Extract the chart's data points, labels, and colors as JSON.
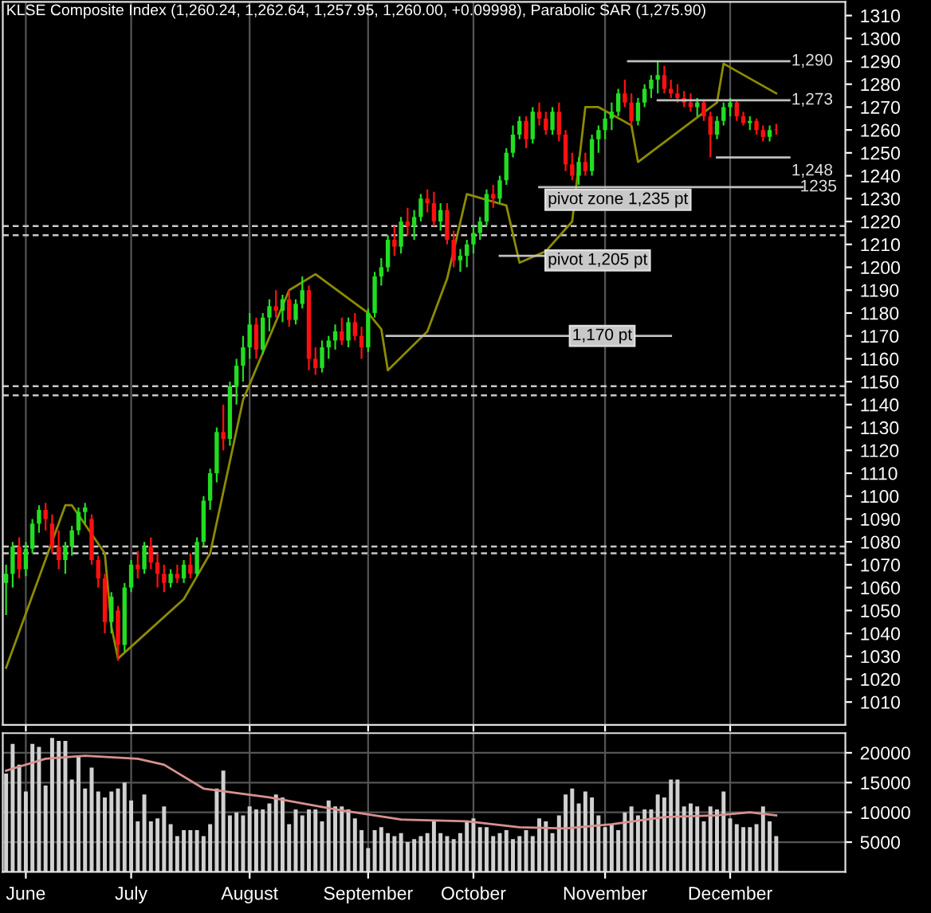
{
  "chart_data": [
    {
      "type": "candlestick",
      "title": "KLSE Composite Index (1,260.24, 1,262.64, 1,257.95, 1,260.00, +0.09998), Parabolic SAR (1,275.90)",
      "categories": [
        null,
        null,
        null,
        null,
        null,
        null,
        null,
        null,
        null,
        null,
        null,
        null,
        null,
        null,
        null,
        null,
        null,
        null,
        null,
        null,
        null,
        null,
        null,
        null,
        null,
        null,
        null,
        null,
        null,
        null,
        null,
        null,
        null,
        null,
        null,
        null,
        null,
        null,
        null,
        null,
        null,
        null,
        null,
        null,
        null,
        null,
        null,
        null,
        null,
        null,
        null,
        null,
        null,
        null,
        null,
        null,
        null,
        null,
        null,
        null,
        null,
        null,
        null,
        null,
        null,
        null,
        null,
        null,
        null,
        null,
        null,
        null,
        null,
        null,
        null,
        null,
        null,
        null,
        null,
        null,
        null,
        null,
        null,
        null,
        null,
        null,
        null,
        null,
        null,
        null,
        null,
        null,
        null,
        null,
        null,
        null,
        null,
        null,
        null,
        null,
        null,
        null,
        null,
        null,
        null,
        null,
        null,
        null,
        null,
        null,
        null,
        null,
        null,
        null,
        null,
        null,
        null,
        null,
        null,
        null,
        null,
        null,
        null,
        null,
        null,
        null,
        null,
        null
      ],
      "ohlc": [
        [
          1062,
          1070,
          1048,
          1066
        ],
        [
          1066,
          1080,
          1060,
          1078
        ],
        [
          1078,
          1082,
          1064,
          1068
        ],
        [
          1068,
          1080,
          1065,
          1077
        ],
        [
          1077,
          1090,
          1075,
          1088
        ],
        [
          1088,
          1096,
          1084,
          1094
        ],
        [
          1094,
          1097,
          1085,
          1090
        ],
        [
          1088,
          1092,
          1075,
          1078
        ],
        [
          1078,
          1085,
          1068,
          1072
        ],
        [
          1072,
          1080,
          1066,
          1078
        ],
        [
          1078,
          1087,
          1074,
          1085
        ],
        [
          1085,
          1095,
          1083,
          1093
        ],
        [
          1093,
          1097,
          1088,
          1095
        ],
        [
          1090,
          1092,
          1070,
          1072
        ],
        [
          1072,
          1074,
          1060,
          1064
        ],
        [
          1064,
          1066,
          1040,
          1045
        ],
        [
          1045,
          1058,
          1040,
          1056
        ],
        [
          1050,
          1052,
          1028,
          1035
        ],
        [
          1035,
          1062,
          1032,
          1060
        ],
        [
          1060,
          1072,
          1058,
          1070
        ],
        [
          1070,
          1076,
          1064,
          1068
        ],
        [
          1068,
          1080,
          1066,
          1078
        ],
        [
          1078,
          1082,
          1068,
          1071
        ],
        [
          1071,
          1075,
          1060,
          1066
        ],
        [
          1066,
          1070,
          1058,
          1062
        ],
        [
          1062,
          1068,
          1060,
          1066
        ],
        [
          1066,
          1070,
          1062,
          1064
        ],
        [
          1064,
          1072,
          1062,
          1070
        ],
        [
          1070,
          1075,
          1064,
          1066
        ],
        [
          1066,
          1082,
          1065,
          1080
        ],
        [
          1080,
          1100,
          1078,
          1098
        ],
        [
          1098,
          1112,
          1094,
          1110
        ],
        [
          1110,
          1130,
          1106,
          1128
        ],
        [
          1128,
          1140,
          1120,
          1125
        ],
        [
          1125,
          1150,
          1122,
          1148
        ],
        [
          1148,
          1160,
          1140,
          1157
        ],
        [
          1157,
          1170,
          1150,
          1165
        ],
        [
          1165,
          1180,
          1160,
          1175
        ],
        [
          1175,
          1178,
          1160,
          1164
        ],
        [
          1164,
          1180,
          1162,
          1178
        ],
        [
          1178,
          1186,
          1172,
          1183
        ],
        [
          1183,
          1190,
          1178,
          1181
        ],
        [
          1181,
          1188,
          1176,
          1186
        ],
        [
          1186,
          1190,
          1174,
          1177
        ],
        [
          1177,
          1186,
          1175,
          1184
        ],
        [
          1184,
          1196,
          1182,
          1190
        ],
        [
          1190,
          1192,
          1155,
          1160
        ],
        [
          1160,
          1165,
          1153,
          1156
        ],
        [
          1156,
          1168,
          1154,
          1165
        ],
        [
          1165,
          1170,
          1160,
          1168
        ],
        [
          1168,
          1175,
          1164,
          1172
        ],
        [
          1172,
          1178,
          1166,
          1168
        ],
        [
          1168,
          1178,
          1165,
          1176
        ],
        [
          1176,
          1180,
          1168,
          1170
        ],
        [
          1170,
          1174,
          1160,
          1165
        ],
        [
          1165,
          1182,
          1163,
          1180
        ],
        [
          1180,
          1198,
          1178,
          1196
        ],
        [
          1196,
          1204,
          1192,
          1200
        ],
        [
          1200,
          1214,
          1198,
          1212
        ],
        [
          1212,
          1218,
          1205,
          1209
        ],
        [
          1209,
          1222,
          1206,
          1220
        ],
        [
          1220,
          1226,
          1214,
          1218
        ],
        [
          1218,
          1225,
          1212,
          1222
        ],
        [
          1222,
          1232,
          1220,
          1230
        ],
        [
          1230,
          1234,
          1224,
          1228
        ],
        [
          1228,
          1233,
          1218,
          1220
        ],
        [
          1220,
          1228,
          1216,
          1225
        ],
        [
          1225,
          1228,
          1210,
          1212
        ],
        [
          1212,
          1216,
          1200,
          1203
        ],
        [
          1203,
          1208,
          1198,
          1205
        ],
        [
          1205,
          1212,
          1200,
          1210
        ],
        [
          1210,
          1218,
          1206,
          1215
        ],
        [
          1215,
          1222,
          1212,
          1220
        ],
        [
          1220,
          1234,
          1218,
          1232
        ],
        [
          1232,
          1236,
          1226,
          1230
        ],
        [
          1230,
          1240,
          1228,
          1238
        ],
        [
          1238,
          1252,
          1236,
          1250
        ],
        [
          1250,
          1262,
          1248,
          1258
        ],
        [
          1258,
          1266,
          1256,
          1264
        ],
        [
          1264,
          1266,
          1252,
          1256
        ],
        [
          1256,
          1270,
          1254,
          1268
        ],
        [
          1268,
          1272,
          1262,
          1265
        ],
        [
          1265,
          1268,
          1258,
          1260
        ],
        [
          1260,
          1270,
          1258,
          1268
        ],
        [
          1268,
          1272,
          1255,
          1258
        ],
        [
          1258,
          1260,
          1242,
          1245
        ],
        [
          1245,
          1250,
          1238,
          1240
        ],
        [
          1240,
          1248,
          1236,
          1246
        ],
        [
          1246,
          1250,
          1240,
          1242
        ],
        [
          1242,
          1258,
          1240,
          1256
        ],
        [
          1256,
          1262,
          1250,
          1260
        ],
        [
          1260,
          1268,
          1256,
          1265
        ],
        [
          1265,
          1272,
          1260,
          1268
        ],
        [
          1268,
          1278,
          1266,
          1276
        ],
        [
          1276,
          1282,
          1270,
          1272
        ],
        [
          1272,
          1276,
          1262,
          1264
        ],
        [
          1264,
          1274,
          1262,
          1272
        ],
        [
          1272,
          1280,
          1270,
          1278
        ],
        [
          1278,
          1284,
          1274,
          1282
        ],
        [
          1282,
          1290,
          1276,
          1284
        ],
        [
          1284,
          1288,
          1276,
          1278
        ],
        [
          1278,
          1282,
          1274,
          1276
        ],
        [
          1276,
          1280,
          1272,
          1274
        ],
        [
          1274,
          1277,
          1270,
          1272
        ],
        [
          1272,
          1276,
          1268,
          1270
        ],
        [
          1270,
          1274,
          1266,
          1272
        ],
        [
          1272,
          1273,
          1264,
          1266
        ],
        [
          1266,
          1268,
          1248,
          1258
        ],
        [
          1258,
          1266,
          1256,
          1264
        ],
        [
          1264,
          1272,
          1262,
          1270
        ],
        [
          1270,
          1274,
          1266,
          1272
        ],
        [
          1272,
          1273,
          1264,
          1266
        ],
        [
          1266,
          1268,
          1262,
          1263
        ],
        [
          1263,
          1266,
          1260,
          1264
        ],
        [
          1264,
          1265,
          1258,
          1260
        ],
        [
          1260,
          1262,
          1255,
          1257
        ],
        [
          1257,
          1262,
          1255,
          1260
        ],
        [
          1260.24,
          1262.64,
          1257.95,
          1260.0
        ],
        null,
        null,
        null,
        null,
        null,
        null,
        null,
        null,
        null,
        null
      ],
      "colors": [
        "#22dd22",
        "#22dd22",
        "#ff1010",
        "#22dd22",
        "#22dd22",
        "#22dd22",
        "#ff1010",
        "#ff1010",
        "#ff1010",
        "#22dd22",
        "#22dd22",
        "#22dd22",
        "#22dd22",
        "#ff1010",
        "#ff1010",
        "#ff1010",
        "#22dd22",
        "#ff1010",
        "#22dd22",
        "#22dd22",
        "#ff1010",
        "#22dd22",
        "#ff1010",
        "#ff1010",
        "#ff1010",
        "#22dd22",
        "#ff1010",
        "#22dd22",
        "#ff1010",
        "#22dd22",
        "#22dd22",
        "#22dd22",
        "#22dd22",
        "#ff1010",
        "#22dd22",
        "#22dd22",
        "#22dd22",
        "#22dd22",
        "#ff1010",
        "#22dd22",
        "#22dd22",
        "#ff1010",
        "#22dd22",
        "#ff1010",
        "#22dd22",
        "#22dd22",
        "#ff1010",
        "#ff1010",
        "#22dd22",
        "#22dd22",
        "#22dd22",
        "#ff1010",
        "#22dd22",
        "#ff1010",
        "#ff1010",
        "#22dd22",
        "#22dd22",
        "#22dd22",
        "#22dd22",
        "#ff1010",
        "#22dd22",
        "#ff1010",
        "#22dd22",
        "#22dd22",
        "#ff1010",
        "#ff1010",
        "#22dd22",
        "#ff1010",
        "#ff1010",
        "#22dd22",
        "#22dd22",
        "#22dd22",
        "#22dd22",
        "#22dd22",
        "#ff1010",
        "#22dd22",
        "#22dd22",
        "#22dd22",
        "#22dd22",
        "#ff1010",
        "#22dd22",
        "#ff1010",
        "#ff1010",
        "#22dd22",
        "#ff1010",
        "#ff1010",
        "#ff1010",
        "#22dd22",
        "#ff1010",
        "#22dd22",
        "#22dd22",
        "#22dd22",
        "#22dd22",
        "#22dd22",
        "#ff1010",
        "#ff1010",
        "#22dd22",
        "#22dd22",
        "#22dd22",
        "#22dd22",
        "#ff1010",
        "#ff1010",
        "#ff1010",
        "#ff1010",
        "#ff1010",
        "#22dd22",
        "#ff1010",
        "#ff1010",
        "#22dd22",
        "#22dd22",
        "#22dd22",
        "#ff1010",
        "#ff1010",
        "#22dd22",
        "#ff1010",
        "#ff1010",
        "#22dd22",
        "#ff1010",
        null,
        null,
        null,
        null,
        null,
        null,
        null,
        null,
        null,
        null
      ],
      "series": [
        {
          "type": "line",
          "color": "#8c8c00",
          "values": [
            1025,
            null,
            null,
            null,
            null,
            null,
            null,
            null,
            null,
            1096,
            1096,
            null,
            null,
            null,
            null,
            1075,
            1043,
            1029,
            null,
            null,
            null,
            null,
            null,
            null,
            null,
            null,
            null,
            1055,
            null,
            null,
            null,
            1075,
            null,
            null,
            null,
            null,
            1142,
            null,
            null,
            null,
            null,
            null,
            null,
            1190,
            null,
            null,
            null,
            1197,
            null,
            null,
            null,
            null,
            null,
            null,
            null,
            1180,
            null,
            1173,
            1155,
            null,
            null,
            null,
            null,
            null,
            1172,
            null,
            null,
            1195,
            null,
            null,
            1232,
            null,
            null,
            null,
            null,
            null,
            1227,
            null,
            1202,
            null,
            null,
            null,
            1207,
            null,
            null,
            null,
            1220,
            null,
            1270,
            null,
            1270,
            null,
            null,
            null,
            null,
            1262,
            1246,
            null,
            null,
            null,
            null,
            null,
            null,
            null,
            null,
            null,
            null,
            null,
            1272,
            1289,
            null,
            null,
            null,
            null,
            null,
            null,
            null,
            1276,
            null,
            null,
            null,
            null,
            null,
            null,
            null,
            null,
            null,
            null
          ]
        }
      ],
      "ref_lines": [
        {
          "axis": "y",
          "value": 1218,
          "color": "#c8c8c8",
          "line_style": "dashed"
        },
        {
          "axis": "y",
          "value": 1214,
          "color": "#c8c8c8",
          "line_style": "dashed"
        },
        {
          "axis": "y",
          "value": 1148,
          "color": "#c8c8c8",
          "line_style": "dashed"
        },
        {
          "axis": "y",
          "value": 1144,
          "color": "#c8c8c8",
          "line_style": "dashed"
        },
        {
          "axis": "y",
          "value": 1078,
          "color": "#c8c8c8",
          "line_style": "dashed"
        },
        {
          "axis": "y",
          "value": 1075,
          "color": "#c8c8c8",
          "line_style": "dashed"
        },
        {
          "axis": "y",
          "value": 1290,
          "label": "1,290",
          "color": "#c0c0c0"
        },
        {
          "axis": "y",
          "value": 1273,
          "label": "1,273",
          "color": "#c0c0c0"
        },
        {
          "axis": "y",
          "value": 1248,
          "label": "1,248",
          "color": "#c0c0c0"
        },
        {
          "axis": "y",
          "value": 1235,
          "label": "1235",
          "color": "#c0c0c0"
        },
        {
          "axis": "y",
          "value": 1205,
          "label": "pivot 1,205 pt",
          "color": "#c0c0c0"
        },
        {
          "axis": "y",
          "value": 1170,
          "label": "1,170 pt",
          "color": "#c0c0c0"
        }
      ],
      "annotations": [
        "pivot zone 1,235 pt"
      ],
      "ylim": [
        1000,
        1316
      ],
      "yticks": [
        1010,
        1020,
        1030,
        1040,
        1050,
        1060,
        1070,
        1080,
        1090,
        1100,
        1110,
        1120,
        1130,
        1140,
        1150,
        1160,
        1170,
        1180,
        1190,
        1200,
        1210,
        1220,
        1230,
        1240,
        1250,
        1260,
        1270,
        1280,
        1290,
        1300,
        1310
      ],
      "grid": "x",
      "tick_labels": "y"
    },
    {
      "type": "bar",
      "categories": [
        null,
        null,
        null,
        "June",
        null,
        null,
        null,
        null,
        null,
        null,
        null,
        null,
        null,
        null,
        null,
        null,
        null,
        null,
        null,
        "July",
        null,
        null,
        null,
        null,
        null,
        null,
        null,
        null,
        null,
        null,
        null,
        null,
        null,
        null,
        null,
        null,
        null,
        "August",
        null,
        null,
        null,
        null,
        null,
        null,
        null,
        null,
        null,
        null,
        null,
        null,
        null,
        null,
        null,
        null,
        null,
        "September",
        null,
        null,
        null,
        null,
        null,
        null,
        null,
        null,
        null,
        null,
        null,
        null,
        null,
        null,
        null,
        "October",
        null,
        null,
        null,
        null,
        null,
        null,
        null,
        null,
        null,
        null,
        null,
        null,
        null,
        null,
        null,
        null,
        null,
        null,
        null,
        "November",
        null,
        null,
        null,
        null,
        null,
        null,
        null,
        null,
        null,
        null,
        null,
        null,
        null,
        null,
        null,
        null,
        null,
        null,
        "December",
        null,
        null,
        null,
        null,
        null,
        null,
        null,
        null,
        null,
        null,
        null,
        null,
        null,
        null,
        null,
        null,
        null
      ],
      "series": [
        {
          "type": "bar",
          "color": "#d0d0d0",
          "values": [
            16500,
            21500,
            18000,
            13500,
            21500,
            21000,
            14500,
            22500,
            22000,
            22000,
            15500,
            19500,
            14000,
            17500,
            13500,
            12500,
            13500,
            14000,
            15000,
            12000,
            8500,
            13000,
            8500,
            9000,
            11000,
            8000,
            6000,
            7000,
            7000,
            7000,
            6000,
            8000,
            14000,
            17000,
            9500,
            10000,
            9500,
            11000,
            10500,
            10500,
            11500,
            13000,
            12500,
            8000,
            10500,
            9500,
            10500,
            10500,
            8500,
            12000,
            11000,
            11000,
            10500,
            9000,
            7000,
            4000,
            7000,
            7500,
            6500,
            6000,
            6500,
            5000,
            5500,
            6000,
            6500,
            8500,
            6500,
            6000,
            5500,
            6500,
            8500,
            9000,
            7500,
            7500,
            6000,
            6500,
            7000,
            5500,
            6000,
            7000,
            6000,
            9000,
            8500,
            6500,
            9500,
            13000,
            14000,
            11500,
            13500,
            12500,
            9500,
            7500,
            8000,
            7000,
            10000,
            11000,
            9500,
            10500,
            10500,
            13000,
            12500,
            15500,
            15500,
            11000,
            11500,
            11000,
            8500,
            11000,
            10500,
            13500,
            9000,
            8000,
            7500,
            7500,
            8000,
            11000,
            8500,
            6000,
            null,
            null,
            null,
            null,
            null,
            null,
            null,
            null,
            null,
            null
          ]
        },
        {
          "type": "line",
          "color": "#d89090",
          "values": [
            17000,
            null,
            null,
            null,
            null,
            null,
            19000,
            null,
            null,
            null,
            null,
            null,
            19500,
            null,
            null,
            null,
            null,
            null,
            null,
            null,
            19000,
            null,
            null,
            null,
            18000,
            null,
            null,
            null,
            null,
            null,
            14000,
            null,
            null,
            null,
            null,
            null,
            null,
            null,
            null,
            null,
            12500,
            null,
            null,
            null,
            null,
            null,
            null,
            null,
            null,
            null,
            10500,
            null,
            null,
            null,
            null,
            null,
            null,
            null,
            null,
            null,
            8800,
            null,
            null,
            null,
            null,
            null,
            null,
            null,
            null,
            null,
            8500,
            null,
            null,
            null,
            null,
            null,
            null,
            null,
            7500,
            null,
            null,
            null,
            null,
            null,
            null,
            7300,
            null,
            null,
            null,
            null,
            null,
            null,
            8000,
            null,
            null,
            null,
            null,
            null,
            null,
            null,
            9200,
            null,
            null,
            null,
            null,
            null,
            null,
            null,
            9500,
            null,
            null,
            null,
            null,
            10000,
            null,
            null,
            null,
            9500,
            null,
            null,
            null,
            null,
            null,
            null,
            null,
            null,
            null,
            null
          ]
        }
      ],
      "ylim": [
        0,
        23300
      ],
      "yticks": [
        5000,
        10000,
        15000,
        20000
      ],
      "grid": true
    }
  ]
}
